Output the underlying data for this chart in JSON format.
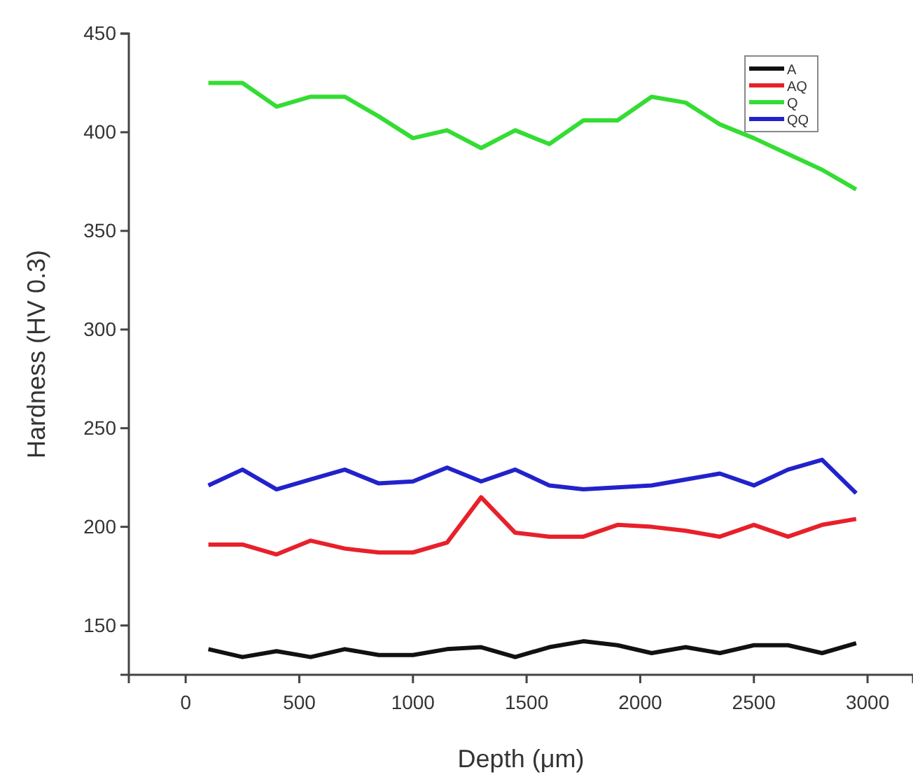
{
  "chart_data": {
    "type": "line",
    "xlabel": "Depth (μm)",
    "ylabel": "Hardness (HV 0.3)",
    "x": [
      100,
      250,
      400,
      550,
      700,
      850,
      1000,
      1150,
      1300,
      1450,
      1600,
      1750,
      1900,
      2050,
      2200,
      2350,
      2500,
      2650,
      2800,
      2950
    ],
    "xlim": [
      -250,
      3200
    ],
    "xticks": [
      0,
      500,
      1000,
      1500,
      2000,
      2500,
      3000
    ],
    "ylim": [
      125,
      450
    ],
    "yticks": [
      150,
      200,
      250,
      300,
      350,
      400,
      450
    ],
    "grid": false,
    "legend": "top right",
    "marker": "none",
    "line_style": "solid",
    "series": [
      {
        "name": "A",
        "color": "#111111",
        "values": [
          138,
          134,
          137,
          134,
          138,
          135,
          135,
          138,
          139,
          134,
          139,
          142,
          140,
          136,
          139,
          136,
          140,
          140,
          136,
          141
        ]
      },
      {
        "name": "AQ",
        "color": "#e8202a",
        "values": [
          191,
          191,
          186,
          193,
          189,
          187,
          187,
          192,
          215,
          197,
          195,
          195,
          201,
          200,
          198,
          195,
          201,
          195,
          201,
          204
        ]
      },
      {
        "name": "Q",
        "color": "#33dd33",
        "values": [
          425,
          425,
          413,
          418,
          418,
          408,
          397,
          401,
          392,
          401,
          394,
          406,
          406,
          418,
          415,
          404,
          397,
          389,
          381,
          371
        ]
      },
      {
        "name": "QQ",
        "color": "#2222cc",
        "values": [
          221,
          229,
          219,
          224,
          229,
          222,
          223,
          230,
          223,
          229,
          221,
          219,
          220,
          221,
          224,
          227,
          221,
          229,
          234,
          217
        ]
      }
    ]
  }
}
